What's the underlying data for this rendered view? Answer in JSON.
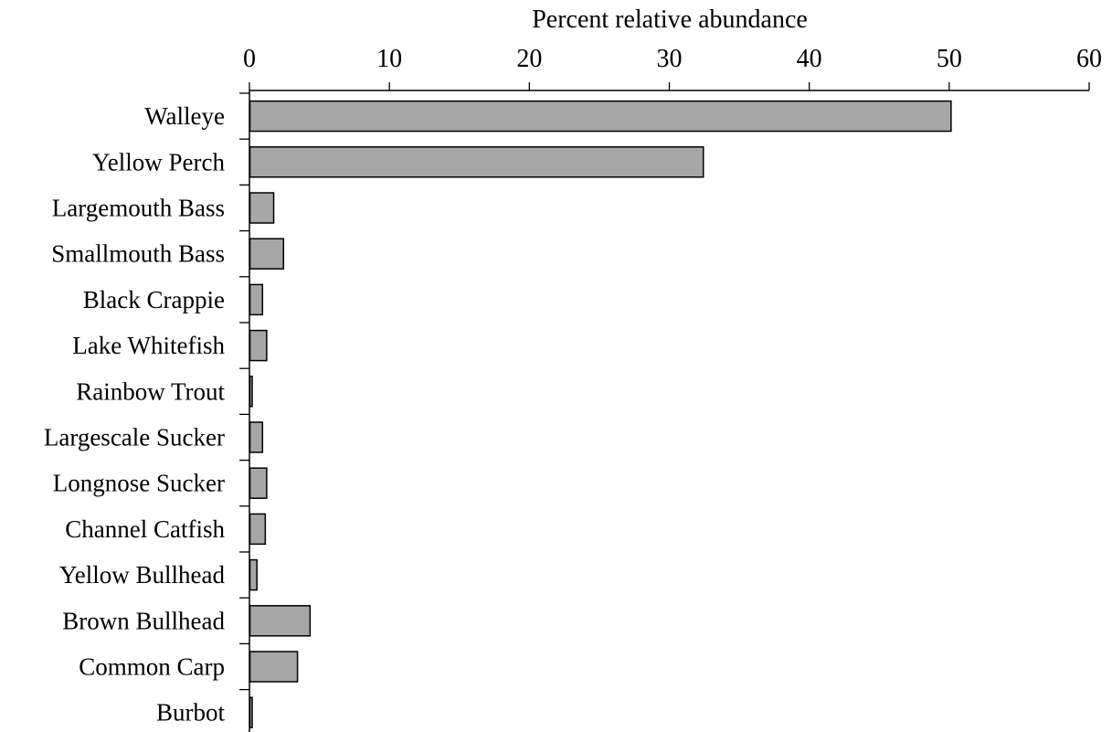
{
  "chart_data": {
    "type": "bar",
    "orientation": "horizontal",
    "title": "",
    "xlabel": "Percent relative abundance",
    "ylabel": "",
    "xlim": [
      0,
      60
    ],
    "x_ticks": [
      "0",
      "10",
      "20",
      "30",
      "40",
      "50",
      "60"
    ],
    "x_axis_position": "top",
    "grid": false,
    "legend": "none",
    "bar_color": "#a6a6a6",
    "bar_edge_color": "#000000",
    "categories": [
      "Walleye",
      "Yellow Perch",
      "Largemouth Bass",
      "Smallmouth Bass",
      "Black Crappie",
      "Lake Whitefish",
      "Rainbow Trout",
      "Largescale Sucker",
      "Longnose Sucker",
      "Channel Catfish",
      "Yellow Bullhead",
      "Brown Bullhead",
      "Common Carp",
      "Burbot"
    ],
    "values": [
      50.1,
      32.4,
      1.7,
      2.4,
      0.9,
      1.2,
      0.1,
      0.9,
      1.2,
      1.1,
      0.5,
      4.3,
      3.4,
      0.1
    ]
  }
}
